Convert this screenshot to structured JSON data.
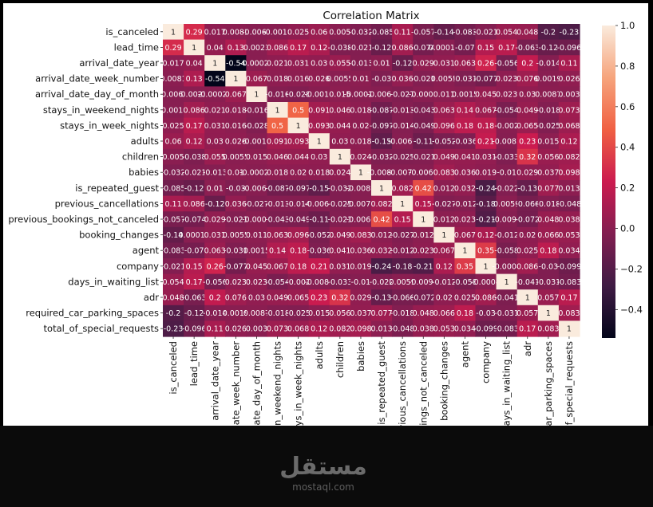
{
  "chart_data": {
    "type": "heatmap",
    "title": "Correlation Matrix",
    "labels": [
      "is_canceled",
      "lead_time",
      "arrival_date_year",
      "arrival_date_week_number",
      "arrival_date_day_of_month",
      "stays_in_weekend_nights",
      "stays_in_week_nights",
      "adults",
      "children",
      "babies",
      "is_repeated_guest",
      "previous_cancellations",
      "previous_bookings_not_canceled",
      "booking_changes",
      "agent",
      "company",
      "days_in_waiting_list",
      "adr",
      "required_car_parking_spaces",
      "total_of_special_requests"
    ],
    "values": [
      [
        1,
        0.29,
        0.017,
        0.008,
        -0.006,
        -0.002,
        0.025,
        0.06,
        0.005,
        -0.032,
        -0.085,
        0.11,
        -0.057,
        -0.14,
        -0.083,
        -0.021,
        0.054,
        0.048,
        -0.2,
        -0.23
      ],
      [
        0.29,
        1,
        0.04,
        0.13,
        0.002,
        0.086,
        0.17,
        0.12,
        -0.038,
        -0.021,
        -0.12,
        0.086,
        -0.074,
        0.0001,
        -0.07,
        0.15,
        0.17,
        -0.063,
        -0.12,
        -0.096
      ],
      [
        0.017,
        0.04,
        1,
        -0.54,
        -0.0002,
        0.021,
        0.031,
        0.03,
        0.055,
        -0.013,
        0.01,
        -0.12,
        0.029,
        0.031,
        0.063,
        0.26,
        -0.056,
        0.2,
        -0.014,
        0.11
      ],
      [
        0.008,
        0.13,
        -0.54,
        1,
        0.067,
        0.018,
        0.016,
        0.026,
        0.0055,
        0.01,
        -0.03,
        0.036,
        -0.021,
        0.0055,
        -0.031,
        -0.077,
        0.023,
        0.076,
        0.002,
        0.026
      ],
      [
        -0.006,
        0.002,
        -0.0002,
        0.067,
        1,
        -0.016,
        -0.028,
        -0.0016,
        0.015,
        -0.0002,
        -0.0061,
        -0.027,
        -0.0003,
        0.011,
        0.0015,
        0.045,
        0.023,
        0.03,
        0.0087,
        0.003
      ],
      [
        -0.002,
        0.086,
        0.021,
        0.018,
        -0.016,
        1,
        0.5,
        0.091,
        0.046,
        0.018,
        -0.087,
        -0.013,
        -0.043,
        0.063,
        0.14,
        0.067,
        -0.054,
        0.049,
        -0.018,
        0.073
      ],
      [
        0.025,
        0.17,
        0.031,
        0.016,
        -0.028,
        0.5,
        1,
        0.093,
        0.044,
        0.02,
        -0.097,
        -0.014,
        -0.049,
        0.096,
        0.18,
        0.18,
        -0.002,
        0.065,
        -0.025,
        0.068
      ],
      [
        0.06,
        0.12,
        0.03,
        0.026,
        -0.0016,
        0.091,
        0.093,
        1,
        0.03,
        0.018,
        -0.15,
        -0.0067,
        -0.11,
        -0.052,
        -0.036,
        0.21,
        -0.0083,
        0.23,
        0.015,
        0.12
      ],
      [
        0.005,
        -0.038,
        0.055,
        0.0055,
        0.015,
        0.046,
        0.044,
        0.03,
        1,
        0.024,
        -0.032,
        -0.025,
        -0.021,
        0.049,
        0.041,
        0.031,
        -0.033,
        0.32,
        0.056,
        0.082
      ],
      [
        -0.032,
        -0.021,
        -0.013,
        0.01,
        -0.0002,
        0.018,
        0.02,
        0.018,
        0.024,
        1,
        -0.0089,
        -0.0075,
        -0.0066,
        0.083,
        0.036,
        0.019,
        -0.01,
        0.029,
        0.037,
        0.098
      ],
      [
        -0.085,
        -0.12,
        0.01,
        -0.03,
        -0.0061,
        -0.087,
        -0.097,
        -0.15,
        -0.032,
        -0.0089,
        1,
        0.082,
        0.42,
        0.012,
        0.032,
        -0.24,
        -0.022,
        -0.13,
        0.077,
        0.013
      ],
      [
        0.11,
        0.086,
        -0.12,
        0.036,
        -0.027,
        -0.013,
        -0.014,
        -0.0067,
        -0.025,
        -0.0075,
        0.082,
        1,
        0.15,
        -0.027,
        -0.012,
        -0.18,
        0.0059,
        -0.066,
        -0.018,
        -0.048
      ],
      [
        -0.057,
        -0.074,
        0.029,
        -0.021,
        -0.0003,
        -0.043,
        -0.049,
        -0.11,
        -0.021,
        -0.0066,
        0.42,
        0.15,
        1,
        0.012,
        0.023,
        -0.21,
        -0.0094,
        -0.072,
        0.048,
        0.038
      ],
      [
        -0.14,
        0.0001,
        0.031,
        0.0055,
        0.011,
        0.063,
        0.096,
        -0.052,
        0.049,
        0.083,
        0.012,
        -0.027,
        0.012,
        1,
        0.067,
        0.12,
        -0.012,
        0.02,
        0.066,
        0.053
      ],
      [
        -0.083,
        -0.07,
        0.063,
        -0.031,
        0.0015,
        0.14,
        0.18,
        -0.036,
        0.041,
        0.036,
        0.032,
        -0.012,
        0.023,
        0.067,
        1,
        0.35,
        -0.058,
        0.025,
        0.18,
        0.034
      ],
      [
        -0.021,
        0.15,
        0.26,
        -0.077,
        0.045,
        0.067,
        0.18,
        0.21,
        0.031,
        0.019,
        -0.24,
        -0.18,
        -0.21,
        0.12,
        0.35,
        1,
        -0.0004,
        0.086,
        -0.03,
        -0.099
      ],
      [
        0.054,
        0.17,
        -0.056,
        0.023,
        0.023,
        -0.054,
        -0.002,
        -0.0083,
        -0.033,
        -0.01,
        -0.022,
        0.0059,
        -0.0094,
        -0.012,
        -0.058,
        -0.0004,
        1,
        -0.041,
        -0.031,
        -0.083
      ],
      [
        0.048,
        -0.063,
        0.2,
        0.076,
        0.03,
        0.049,
        0.065,
        0.23,
        0.32,
        0.029,
        -0.13,
        -0.066,
        -0.072,
        0.02,
        0.025,
        0.086,
        -0.041,
        1,
        0.057,
        0.17
      ],
      [
        -0.2,
        -0.12,
        -0.014,
        0.002,
        0.0087,
        -0.018,
        -0.025,
        0.015,
        0.056,
        0.037,
        0.077,
        -0.018,
        0.048,
        0.066,
        0.18,
        -0.03,
        -0.031,
        0.057,
        1,
        0.083
      ],
      [
        -0.23,
        -0.096,
        0.11,
        0.026,
        0.003,
        0.073,
        0.068,
        0.12,
        0.082,
        0.098,
        0.013,
        -0.048,
        0.038,
        0.053,
        0.034,
        -0.099,
        -0.083,
        0.17,
        0.083,
        1
      ]
    ],
    "annotations": [
      [
        "1",
        "0.29",
        "0.017",
        "0.0081",
        "-0.0061",
        "-0.0018",
        "0.025",
        "0.06",
        "0.005",
        "-0.032",
        "-0.085",
        "0.11",
        "-0.057",
        "-0.14",
        "-0.083",
        "-0.021",
        "0.054",
        "0.048",
        "-0.2",
        "-0.23"
      ],
      [
        "0.29",
        "1",
        "0.04",
        "0.13",
        "0.0023",
        "0.086",
        "0.17",
        "0.12",
        "-0.038",
        "-0.021",
        "-0.12",
        "0.086",
        "-0.074",
        "0.00015",
        "-0.07",
        "0.15",
        "0.17",
        "-0.063",
        "-0.12",
        "-0.096"
      ],
      [
        "0.017",
        "0.04",
        "1",
        "-0.54",
        "-0.00022",
        "0.021",
        "0.031",
        "0.03",
        "0.055",
        "-0.013",
        "0.01",
        "-0.12",
        "0.029",
        "0.031",
        "0.063",
        "0.26",
        "-0.056",
        "0.2",
        "-0.014",
        "0.11"
      ],
      [
        "0.0081",
        "0.13",
        "-0.54",
        "1",
        "0.067",
        "0.018",
        "0.016",
        "0.026",
        "0.0055",
        "0.01",
        "-0.03",
        "0.036",
        "-0.021",
        "0.0055",
        "-0.031",
        "-0.077",
        "0.023",
        "0.076",
        "0.0019",
        "0.026"
      ],
      [
        "-0.0061",
        "0.0023",
        "-0.00022",
        "0.067",
        "1",
        "-0.016",
        "-0.028",
        "-0.0016",
        "0.015",
        "-0.00023",
        "-0.0061",
        "-0.027",
        "-0.0003",
        "0.011",
        "0.0015",
        "0.045",
        "0.023",
        "0.03",
        "0.0087",
        "0.003"
      ],
      [
        "-0.0018",
        "0.086",
        "0.021",
        "0.018",
        "-0.016",
        "1",
        "0.5",
        "0.091",
        "0.046",
        "0.018",
        "-0.087",
        "-0.013",
        "-0.043",
        "0.063",
        "0.14",
        "0.067",
        "-0.054",
        "0.049",
        "-0.018",
        "0.073"
      ],
      [
        "0.025",
        "0.17",
        "0.031",
        "0.016",
        "-0.028",
        "0.5",
        "1",
        "0.093",
        "0.044",
        "0.02",
        "-0.097",
        "-0.014",
        "-0.049",
        "0.096",
        "0.18",
        "0.18",
        "-0.002",
        "0.065",
        "-0.025",
        "0.068"
      ],
      [
        "0.06",
        "0.12",
        "0.03",
        "0.026",
        "-0.0016",
        "0.091",
        "0.093",
        "1",
        "0.03",
        "0.018",
        "-0.15",
        "-0.0067",
        "-0.11",
        "-0.052",
        "-0.036",
        "0.21",
        "-0.0083",
        "0.23",
        "0.015",
        "0.12"
      ],
      [
        "0.005",
        "-0.038",
        "0.055",
        "0.0055",
        "0.015",
        "0.046",
        "0.044",
        "0.03",
        "1",
        "0.024",
        "-0.032",
        "-0.025",
        "-0.021",
        "0.049",
        "0.041",
        "0.031",
        "-0.033",
        "0.32",
        "0.056",
        "0.082"
      ],
      [
        "-0.032",
        "-0.021",
        "-0.013",
        "0.01",
        "-0.00023",
        "0.018",
        "0.02",
        "0.018",
        "0.024",
        "1",
        "-0.0089",
        "-0.0075",
        "-0.0066",
        "0.083",
        "0.036",
        "0.019",
        "-0.01",
        "0.029",
        "0.037",
        "0.098"
      ],
      [
        "-0.085",
        "-0.12",
        "0.01",
        "-0.03",
        "-0.0061",
        "-0.087",
        "-0.097",
        "-0.15",
        "-0.032",
        "-0.0089",
        "1",
        "0.082",
        "0.42",
        "0.012",
        "0.032",
        "-0.24",
        "-0.022",
        "-0.13",
        "0.077",
        "0.013"
      ],
      [
        "0.11",
        "0.086",
        "-0.12",
        "0.036",
        "-0.027",
        "-0.013",
        "-0.014",
        "-0.0067",
        "-0.025",
        "-0.0075",
        "0.082",
        "1",
        "0.15",
        "-0.027",
        "-0.012",
        "-0.18",
        "0.0059",
        "-0.066",
        "-0.018",
        "-0.048"
      ],
      [
        "-0.057",
        "-0.074",
        "0.029",
        "-0.021",
        "-0.0003",
        "-0.043",
        "-0.049",
        "-0.11",
        "-0.021",
        "-0.0066",
        "0.42",
        "0.15",
        "1",
        "0.012",
        "0.023",
        "-0.21",
        "-0.0094",
        "-0.072",
        "0.048",
        "0.038"
      ],
      [
        "-0.14",
        "0.00015",
        "0.031",
        "0.0055",
        "0.011",
        "0.063",
        "0.096",
        "-0.052",
        "0.049",
        "0.083",
        "0.012",
        "-0.027",
        "0.012",
        "1",
        "0.067",
        "0.12",
        "-0.012",
        "0.02",
        "0.066",
        "0.053"
      ],
      [
        "-0.083",
        "-0.07",
        "0.063",
        "-0.031",
        "0.0015",
        "0.14",
        "0.18",
        "-0.036",
        "0.041",
        "0.036",
        "0.032",
        "-0.012",
        "0.023",
        "0.067",
        "1",
        "0.35",
        "-0.058",
        "0.025",
        "0.18",
        "0.034"
      ],
      [
        "-0.021",
        "0.15",
        "0.26",
        "-0.077",
        "0.045",
        "0.067",
        "0.18",
        "0.21",
        "0.031",
        "0.019",
        "-0.24",
        "-0.18",
        "-0.21",
        "0.12",
        "0.35",
        "1",
        "-0.0004",
        "0.086",
        "-0.03",
        "-0.099"
      ],
      [
        "0.054",
        "0.17",
        "-0.056",
        "0.023",
        "0.023",
        "-0.054",
        "-0.002",
        "-0.0083",
        "-0.033",
        "-0.01",
        "-0.022",
        "0.0059",
        "-0.0094",
        "-0.012",
        "-0.058",
        "-0.0004",
        "1",
        "-0.041",
        "-0.031",
        "-0.083"
      ],
      [
        "0.048",
        "-0.063",
        "0.2",
        "0.076",
        "0.03",
        "0.049",
        "0.065",
        "0.23",
        "0.32",
        "0.029",
        "-0.13",
        "-0.066",
        "-0.072",
        "0.02",
        "0.025",
        "0.086",
        "-0.041",
        "1",
        "0.057",
        "0.17"
      ],
      [
        "-0.2",
        "-0.12",
        "-0.014",
        "0.0019",
        "0.0087",
        "-0.018",
        "-0.025",
        "0.015",
        "0.056",
        "0.037",
        "0.077",
        "-0.018",
        "0.048",
        "0.066",
        "0.18",
        "-0.03",
        "-0.031",
        "0.057",
        "1",
        "0.083"
      ],
      [
        "-0.23",
        "-0.096",
        "0.11",
        "0.026",
        "0.003",
        "0.073",
        "0.068",
        "0.12",
        "0.082",
        "0.098",
        "0.013",
        "-0.048",
        "0.038",
        "0.053",
        "0.034",
        "-0.099",
        "-0.083",
        "0.17",
        "0.083",
        "1"
      ]
    ],
    "colorbar": {
      "range": [
        -0.54,
        1.0
      ],
      "ticks": [
        -0.4,
        -0.2,
        0.0,
        0.2,
        0.4,
        0.6,
        0.8,
        1.0
      ],
      "tick_labels": [
        "−0.4",
        "−0.2",
        "0.0",
        "0.2",
        "0.4",
        "0.6",
        "0.8",
        "1.0"
      ],
      "colormap": "rocket",
      "colormap_stops": [
        "#03051a",
        "#3f1b44",
        "#811e51",
        "#cb1b4f",
        "#f06043",
        "#f6a47c",
        "#faebdd"
      ]
    }
  },
  "watermark": {
    "arabic_text": "مستقل",
    "latin_text": "mostaql.com"
  }
}
